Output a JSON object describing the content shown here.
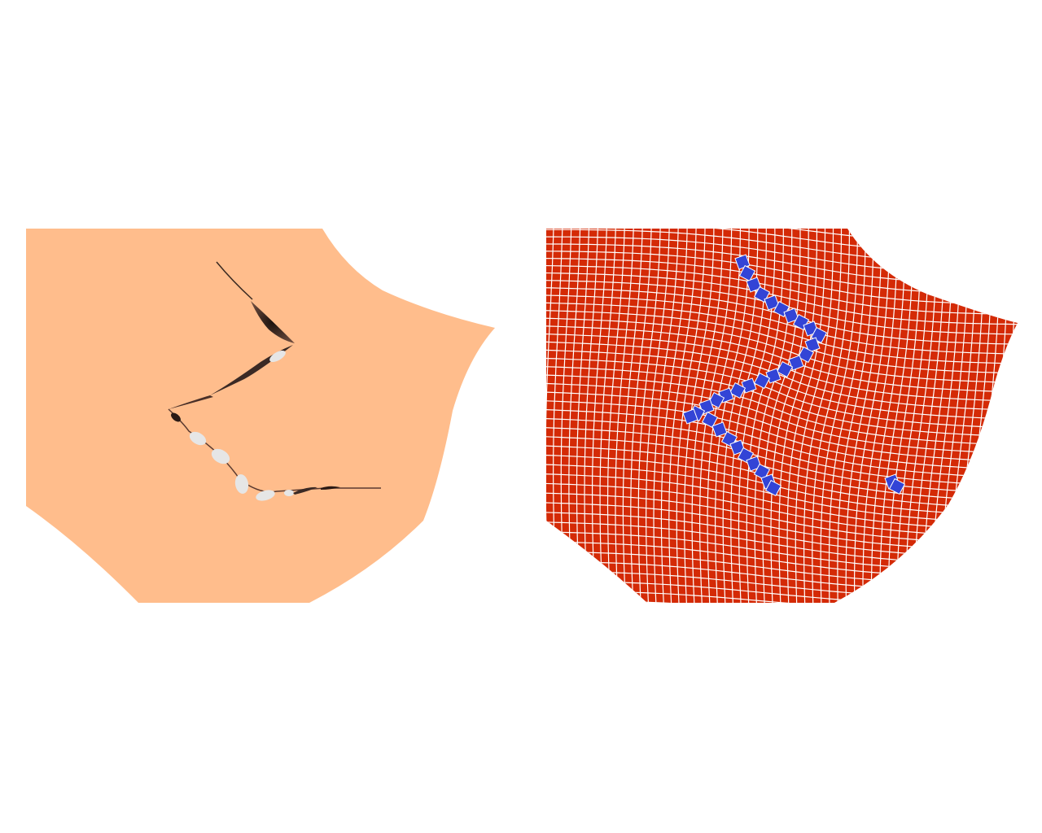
{
  "figure": {
    "panels": [
      {
        "id": "rendered-surface",
        "kind": "shaded surface with tear",
        "fill": "#FFBD8C",
        "crack_fill": "#E6E6E6",
        "crack_shadow": "#3B2A25"
      },
      {
        "id": "mesh-view",
        "kind": "quad mesh with highlighted elements",
        "fill": "#D42A06",
        "grid_line": "#FFFFFF",
        "highlight": "#3344D6"
      }
    ]
  }
}
